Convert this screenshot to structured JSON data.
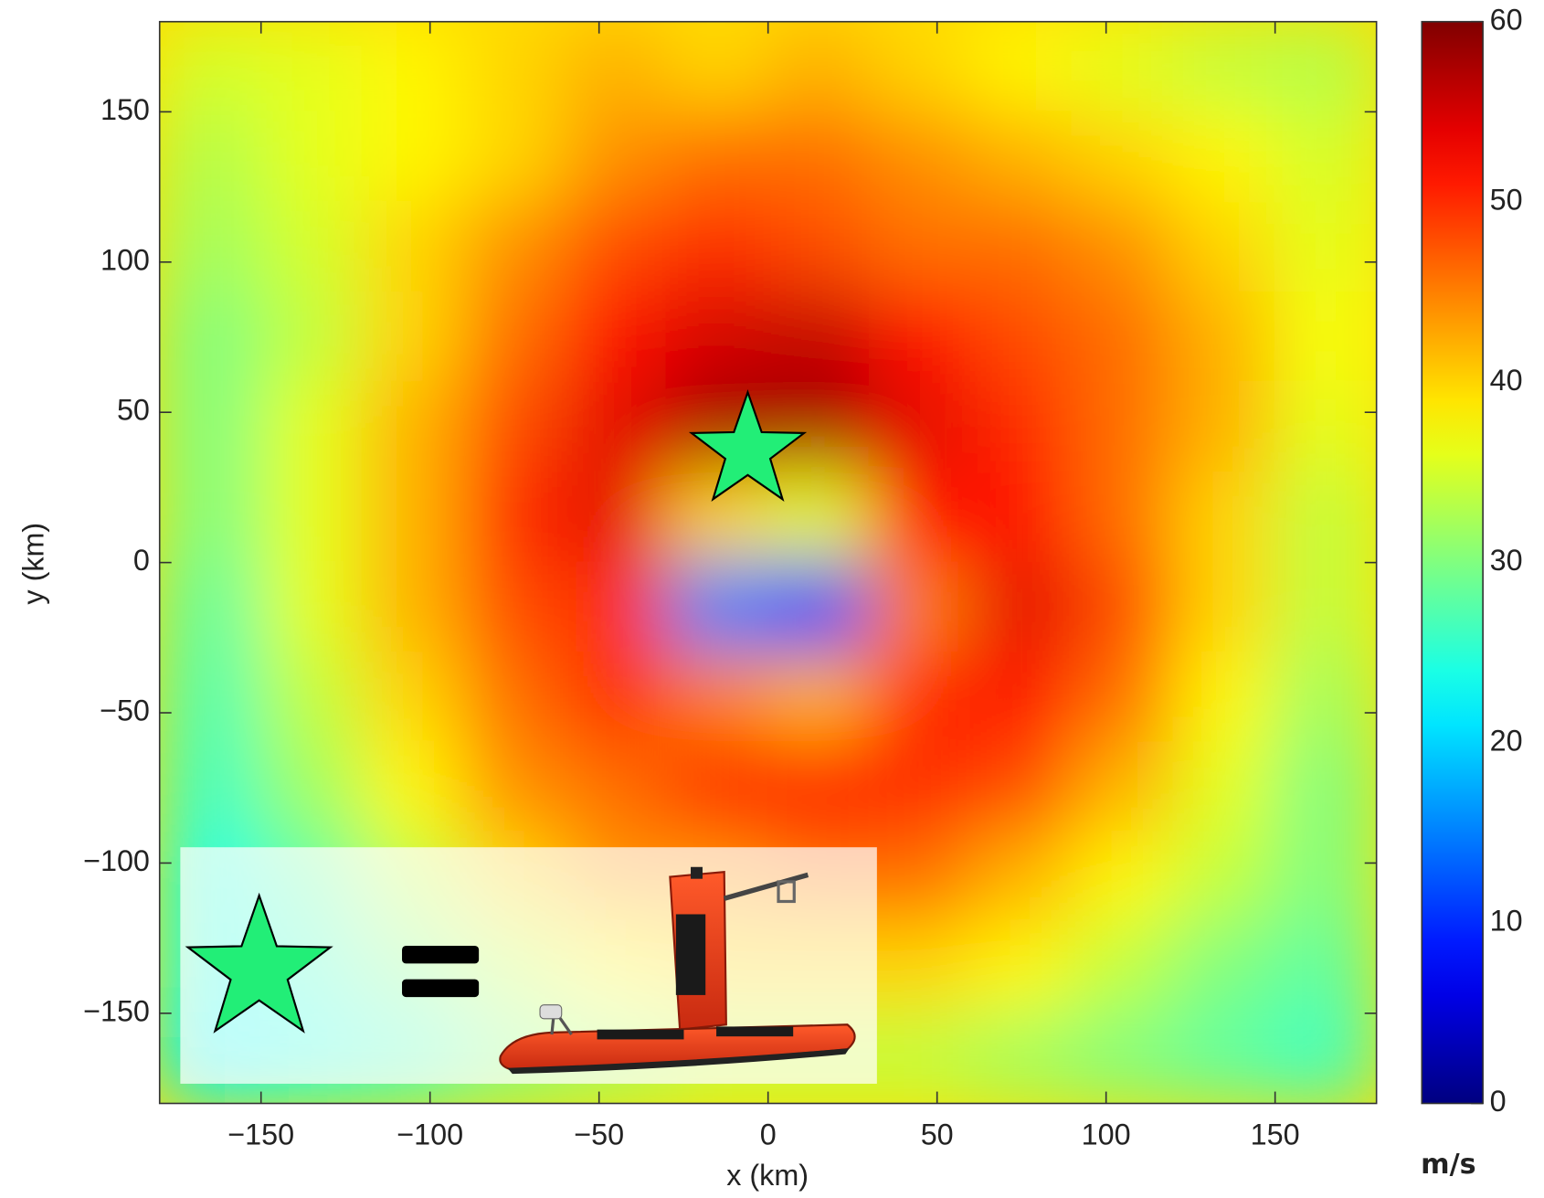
{
  "chart_data": {
    "type": "heatmap",
    "xlabel": "x (km)",
    "ylabel": "y (km)",
    "xlim": [
      -180,
      180
    ],
    "ylim": [
      -180,
      180
    ],
    "xticks": [
      {
        "value": -150,
        "label": "−150"
      },
      {
        "value": -100,
        "label": "−100"
      },
      {
        "value": -50,
        "label": "−50"
      },
      0,
      50,
      100,
      150
    ],
    "yticks": [
      {
        "value": -150,
        "label": "−150"
      },
      {
        "value": -100,
        "label": "−100"
      },
      {
        "value": -50,
        "label": "−50"
      },
      0,
      50,
      100,
      150
    ],
    "x": [
      -165,
      -135,
      -105,
      -75,
      -45,
      -15,
      15,
      45,
      75,
      105,
      135,
      165
    ],
    "y": [
      165,
      135,
      105,
      75,
      45,
      15,
      -15,
      -45,
      -75,
      -105,
      -135,
      -165
    ],
    "z": [
      [
        35,
        36,
        38,
        40,
        42,
        40,
        42,
        40,
        38,
        36,
        34,
        33
      ],
      [
        33,
        36,
        38,
        40,
        44,
        46,
        46,
        44,
        42,
        40,
        38,
        35
      ],
      [
        32,
        35,
        40,
        44,
        48,
        50,
        48,
        46,
        46,
        44,
        40,
        36
      ],
      [
        30,
        34,
        40,
        46,
        52,
        55,
        56,
        52,
        48,
        46,
        42,
        37
      ],
      [
        30,
        36,
        42,
        48,
        54,
        58,
        58,
        54,
        50,
        46,
        42,
        36
      ],
      [
        30,
        36,
        42,
        50,
        54,
        40,
        36,
        52,
        52,
        46,
        40,
        34
      ],
      [
        28,
        36,
        42,
        48,
        50,
        15,
        10,
        45,
        54,
        48,
        40,
        34
      ],
      [
        27,
        34,
        40,
        46,
        50,
        45,
        42,
        50,
        52,
        46,
        38,
        32
      ],
      [
        26,
        32,
        38,
        44,
        46,
        50,
        52,
        50,
        48,
        42,
        36,
        30
      ],
      [
        24,
        28,
        34,
        40,
        44,
        44,
        46,
        46,
        42,
        38,
        34,
        30
      ],
      [
        24,
        26,
        30,
        34,
        38,
        40,
        40,
        40,
        38,
        34,
        30,
        28
      ],
      [
        22,
        24,
        26,
        30,
        32,
        34,
        34,
        34,
        32,
        30,
        28,
        26
      ]
    ],
    "colormap": "jet",
    "clim": [
      0,
      60
    ],
    "cticks": [
      0,
      10,
      20,
      30,
      40,
      50,
      60
    ],
    "clabel": "m/s",
    "marker": {
      "x": -6,
      "y": 37,
      "color": "#22ee77"
    }
  }
}
